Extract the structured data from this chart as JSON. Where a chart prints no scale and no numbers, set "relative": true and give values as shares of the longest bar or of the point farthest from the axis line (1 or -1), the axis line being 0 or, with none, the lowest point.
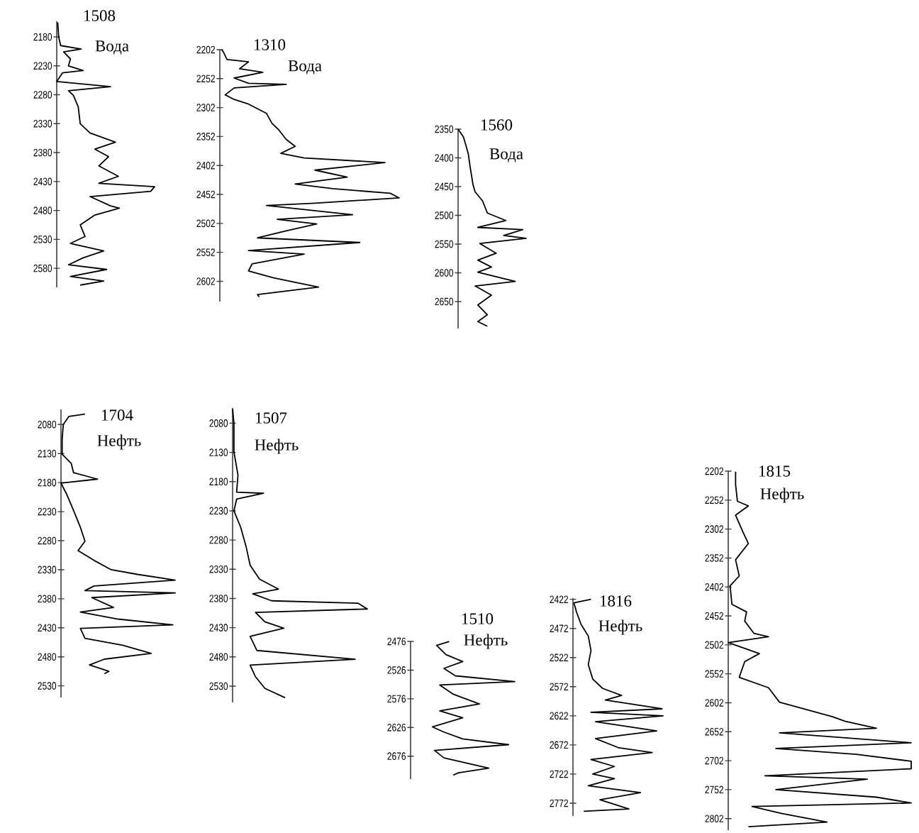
{
  "chart_data": [
    {
      "type": "line",
      "orientation": "horizontal",
      "relative": true,
      "title": "1508",
      "subtitle": "Вода",
      "color": "#000000",
      "ylim": [
        2613,
        2153
      ],
      "yticks": [
        2180,
        2230,
        2280,
        2330,
        2380,
        2430,
        2480,
        2530,
        2580
      ],
      "x": [
        2155,
        2180,
        2195,
        2201,
        2206,
        2218,
        2230,
        2238,
        2242,
        2252,
        2257,
        2266,
        2273,
        2281,
        2301,
        2330,
        2346,
        2362,
        2374,
        2387,
        2403,
        2421,
        2433,
        2439,
        2447,
        2456,
        2472,
        2476,
        2488,
        2505,
        2525,
        2537,
        2550,
        2562,
        2574,
        2582,
        2594,
        2602,
        2609
      ],
      "values": [
        0.01,
        0.02,
        0.04,
        0.25,
        0.07,
        0.14,
        0.12,
        0.27,
        0.06,
        0.02,
        0,
        0.55,
        0.12,
        0.17,
        0.22,
        0.24,
        0.34,
        0.6,
        0.39,
        0.53,
        0.43,
        0.63,
        0.43,
        1.0,
        0.96,
        0.34,
        0.55,
        0.64,
        0.39,
        0.24,
        0.29,
        0.14,
        0.48,
        0.27,
        0.12,
        0.51,
        0.14,
        0.48,
        0.24
      ]
    },
    {
      "type": "line",
      "orientation": "horizontal",
      "relative": true,
      "title": "1310",
      "subtitle": "Вода",
      "color": "#000000",
      "ylim": [
        2637,
        2202
      ],
      "yticks": [
        2202,
        2252,
        2302,
        2352,
        2402,
        2452,
        2502,
        2552,
        2602
      ],
      "x": [
        2202,
        2206,
        2219,
        2223,
        2235,
        2241,
        2251,
        2260,
        2262,
        2268,
        2280,
        2288,
        2296,
        2312,
        2329,
        2341,
        2357,
        2369,
        2381,
        2389,
        2397,
        2410,
        2422,
        2434,
        2442,
        2450,
        2458,
        2467,
        2471,
        2487,
        2495,
        2503,
        2515,
        2527,
        2535,
        2549,
        2555,
        2572,
        2584,
        2596,
        2612,
        2625,
        2629
      ],
      "values": [
        0.01,
        0.02,
        0.04,
        0.16,
        0.11,
        0.24,
        0.08,
        0.16,
        0.37,
        0.08,
        0.03,
        0.08,
        0.16,
        0.26,
        0.29,
        0.33,
        0.37,
        0.42,
        0.34,
        0.47,
        0.92,
        0.53,
        0.71,
        0.42,
        0.63,
        0.95,
        1.0,
        0.53,
        0.26,
        0.74,
        0.32,
        0.54,
        0.37,
        0.21,
        0.78,
        0.16,
        0.47,
        0.18,
        0.16,
        0.3,
        0.55,
        0.21,
        0.22
      ]
    },
    {
      "type": "line",
      "orientation": "horizontal",
      "relative": true,
      "title": "1560",
      "subtitle": "Вода",
      "color": "#000000",
      "ylim": [
        2697,
        2350
      ],
      "yticks": [
        2350,
        2400,
        2450,
        2500,
        2550,
        2600,
        2650
      ],
      "x": [
        2350,
        2364,
        2393,
        2418,
        2447,
        2459,
        2475,
        2496,
        2509,
        2521,
        2525,
        2535,
        2540,
        2549,
        2566,
        2578,
        2590,
        2599,
        2615,
        2623,
        2639,
        2656,
        2673,
        2685,
        2693
      ],
      "values": [
        0,
        0.08,
        0.15,
        0.18,
        0.22,
        0.25,
        0.36,
        0.43,
        0.7,
        0.29,
        0.95,
        0.67,
        1.0,
        0.32,
        0.56,
        0.29,
        0.49,
        0.29,
        0.84,
        0.25,
        0.49,
        0.29,
        0.43,
        0.29,
        0.43
      ]
    },
    {
      "type": "line",
      "orientation": "horizontal",
      "relative": true,
      "title": "1704",
      "subtitle": "Нефть",
      "color": "#000000",
      "ylim": [
        2550,
        2054
      ],
      "yticks": [
        2080,
        2130,
        2180,
        2230,
        2280,
        2330,
        2380,
        2430,
        2480,
        2530
      ],
      "x": [
        2062,
        2066,
        2080,
        2106,
        2131,
        2147,
        2163,
        2174,
        2181,
        2200,
        2228,
        2257,
        2281,
        2297,
        2314,
        2330,
        2338,
        2348,
        2358,
        2366,
        2370,
        2378,
        2395,
        2403,
        2415,
        2425,
        2431,
        2448,
        2460,
        2474,
        2484,
        2494,
        2505,
        2509
      ],
      "values": [
        0.21,
        0.07,
        0.02,
        0.01,
        0.01,
        0.09,
        0.11,
        0.32,
        0,
        0.05,
        0.11,
        0.17,
        0.21,
        0.15,
        0.29,
        0.44,
        0.67,
        1.0,
        0.29,
        0.21,
        1.0,
        0.27,
        0.46,
        0.17,
        0.5,
        0.98,
        0.17,
        0.21,
        0.54,
        0.79,
        0.38,
        0.25,
        0.42,
        0.38
      ]
    },
    {
      "type": "line",
      "orientation": "horizontal",
      "relative": true,
      "title": "1507",
      "subtitle": "Нефть",
      "color": "#000000",
      "ylim": [
        2558,
        2054
      ],
      "yticks": [
        2080,
        2130,
        2180,
        2230,
        2280,
        2330,
        2380,
        2430,
        2480,
        2530
      ],
      "x": [
        2056,
        2080,
        2129,
        2169,
        2198,
        2200,
        2210,
        2230,
        2258,
        2291,
        2323,
        2347,
        2364,
        2372,
        2384,
        2388,
        2398,
        2404,
        2420,
        2431,
        2445,
        2469,
        2484,
        2494,
        2514,
        2534,
        2550
      ],
      "values": [
        0,
        0.01,
        0.01,
        0.04,
        0.03,
        0.23,
        0.03,
        0.01,
        0.06,
        0.1,
        0.13,
        0.2,
        0.34,
        0.15,
        0.29,
        0.93,
        1.0,
        0.17,
        0.24,
        0.38,
        0.13,
        0.18,
        0.91,
        0.13,
        0.17,
        0.24,
        0.39
      ]
    },
    {
      "type": "line",
      "orientation": "horizontal",
      "relative": true,
      "title": "1510",
      "subtitle": "Нефть",
      "color": "#000000",
      "ylim": [
        2716,
        2476
      ],
      "yticks": [
        2476,
        2526,
        2576,
        2626,
        2676
      ],
      "x": [
        2476,
        2483,
        2499,
        2511,
        2523,
        2536,
        2546,
        2552,
        2568,
        2585,
        2597,
        2609,
        2625,
        2634,
        2646,
        2656,
        2666,
        2679,
        2697,
        2705,
        2709
      ],
      "values": [
        0.37,
        0.25,
        0.34,
        0.5,
        0.32,
        0.43,
        1.0,
        0.28,
        0.41,
        0.66,
        0.28,
        0.5,
        0.21,
        0.32,
        0.5,
        0.94,
        0.23,
        0.32,
        0.75,
        0.46,
        0.41
      ]
    },
    {
      "type": "line",
      "orientation": "horizontal",
      "relative": true,
      "title": "1816",
      "subtitle": "Нефть",
      "color": "#000000",
      "ylim": [
        2794,
        2420
      ],
      "yticks": [
        2422,
        2472,
        2522,
        2572,
        2622,
        2672,
        2722,
        2772
      ],
      "x": [
        2422,
        2428,
        2444,
        2465,
        2485,
        2510,
        2534,
        2559,
        2575,
        2587,
        2595,
        2610,
        2616,
        2622,
        2632,
        2648,
        2661,
        2677,
        2685,
        2697,
        2709,
        2722,
        2730,
        2742,
        2754,
        2766,
        2782,
        2786
      ],
      "values": [
        0.2,
        0.01,
        0.04,
        0.09,
        0.17,
        0.2,
        0.17,
        0.22,
        0.33,
        0.54,
        0.36,
        0.99,
        0.2,
        1.0,
        0.25,
        0.93,
        0.25,
        0.51,
        0.88,
        0.2,
        0.46,
        0.22,
        0.46,
        0.17,
        0.75,
        0.3,
        0.62,
        0.12
      ]
    },
    {
      "type": "line",
      "orientation": "horizontal",
      "relative": true,
      "title": "1815",
      "subtitle": "Нефть",
      "color": "#000000",
      "ylim": [
        2822,
        2202
      ],
      "yticks": [
        2202,
        2252,
        2302,
        2352,
        2402,
        2452,
        2502,
        2552,
        2602,
        2652,
        2702,
        2752,
        2802
      ],
      "x": [
        2203,
        2225,
        2254,
        2262,
        2278,
        2307,
        2327,
        2355,
        2383,
        2400,
        2432,
        2445,
        2461,
        2482,
        2488,
        2498,
        2517,
        2531,
        2558,
        2576,
        2601,
        2626,
        2634,
        2646,
        2654,
        2671,
        2681,
        2691,
        2703,
        2716,
        2728,
        2734,
        2752,
        2765,
        2775,
        2781,
        2793,
        2808,
        2816
      ],
      "values": [
        0.04,
        0.04,
        0.05,
        0.11,
        0.04,
        0.08,
        0.11,
        0.04,
        0.06,
        0.01,
        0.02,
        0.1,
        0.09,
        0.14,
        0.22,
        0,
        0.17,
        0.09,
        0.06,
        0.22,
        0.28,
        0.57,
        0.64,
        0.81,
        0.28,
        1.0,
        0.26,
        0.7,
        1.0,
        1.0,
        0.2,
        0.76,
        0.26,
        0.81,
        1.0,
        0.13,
        0.29,
        0.54,
        0.11
      ]
    }
  ]
}
